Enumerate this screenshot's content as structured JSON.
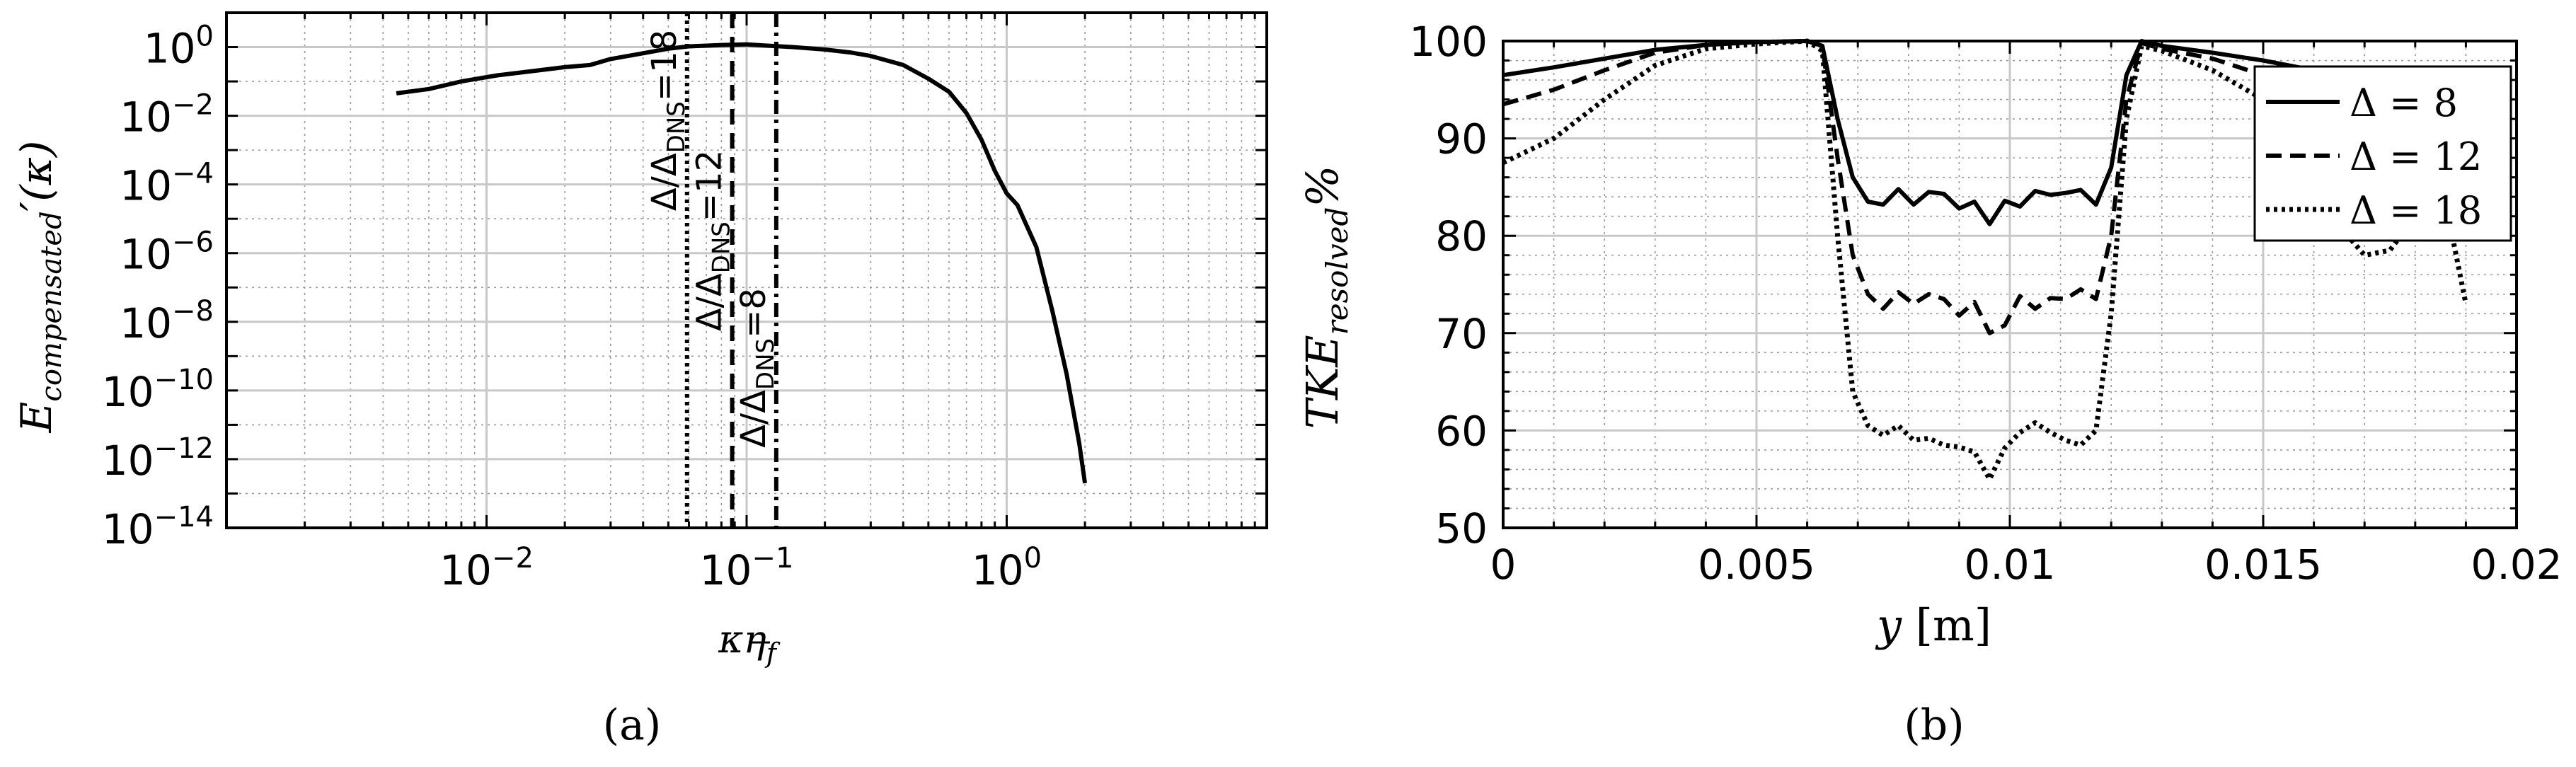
{
  "chart_data": [
    {
      "panel_label": "(a)",
      "type": "line",
      "x_scale": "log",
      "y_scale": "log",
      "xlim": [
        0.001,
        10
      ],
      "ylim": [
        1e-14,
        10
      ],
      "xlabel_base": "κη",
      "xlabel_sub": "f",
      "ylabel_base": "E",
      "ylabel_sub": "compensated",
      "ylabel_tail": "′(κ)",
      "xticks": [
        {
          "value": 0.01,
          "base": "10",
          "exp": "−2"
        },
        {
          "value": 0.1,
          "base": "10",
          "exp": "−1"
        },
        {
          "value": 1,
          "base": "10",
          "exp": "0"
        }
      ],
      "yticks": [
        {
          "value": 1,
          "base": "10",
          "exp": "0"
        },
        {
          "value": 0.01,
          "base": "10",
          "exp": "−2"
        },
        {
          "value": 0.0001,
          "base": "10",
          "exp": "−4"
        },
        {
          "value": 1e-06,
          "base": "10",
          "exp": "−6"
        },
        {
          "value": 1e-08,
          "base": "10",
          "exp": "−8"
        },
        {
          "value": 1e-10,
          "base": "10",
          "exp": "−10"
        },
        {
          "value": 1e-12,
          "base": "10",
          "exp": "−12"
        },
        {
          "value": 1e-14,
          "base": "10",
          "exp": "−14"
        }
      ],
      "grid": true,
      "series": [
        {
          "style": "solid",
          "x": [
            0.0045,
            0.006,
            0.008,
            0.011,
            0.015,
            0.02,
            0.025,
            0.03,
            0.035,
            0.05,
            0.06,
            0.08,
            0.1,
            0.12,
            0.15,
            0.2,
            0.25,
            0.3,
            0.4,
            0.5,
            0.6,
            0.7,
            0.8,
            0.9,
            1.0,
            1.1,
            1.3,
            1.5,
            1.7,
            1.9,
            2.0
          ],
          "y": [
            0.045,
            0.06,
            0.1,
            0.15,
            0.2,
            0.26,
            0.3,
            0.45,
            0.55,
            0.9,
            1.05,
            1.15,
            1.2,
            1.1,
            1.0,
            0.85,
            0.7,
            0.55,
            0.3,
            0.12,
            0.05,
            0.012,
            0.002,
            0.00025,
            5.5e-05,
            2.5e-05,
            1.5e-06,
            2e-08,
            3e-10,
            3e-12,
            2e-13
          ]
        }
      ],
      "vlines": [
        {
          "x": 0.059,
          "style": "dotted",
          "label_base": "Δ/Δ",
          "label_sub": "DNS",
          "label_tail": "=18"
        },
        {
          "x": 0.088,
          "style": "dashed",
          "label_base": "Δ/Δ",
          "label_sub": "DNS",
          "label_tail": "=12"
        },
        {
          "x": 0.13,
          "style": "dashdot",
          "label_base": "Δ/Δ",
          "label_sub": "DNS",
          "label_tail": "=8"
        }
      ]
    },
    {
      "panel_label": "(b)",
      "type": "line",
      "xlim": [
        0,
        0.02
      ],
      "ylim": [
        50,
        100
      ],
      "xlabel_italic": "y",
      "xlabel_unit": "[m]",
      "ylabel_base": "TKE",
      "ylabel_sub": "resolved",
      "ylabel_tail": "%",
      "xticks": [
        {
          "value": 0,
          "label": "0"
        },
        {
          "value": 0.005,
          "label": "0.005"
        },
        {
          "value": 0.01,
          "label": "0.01"
        },
        {
          "value": 0.015,
          "label": "0.015"
        },
        {
          "value": 0.02,
          "label": "0.02"
        }
      ],
      "yticks": [
        {
          "value": 50,
          "label": "50"
        },
        {
          "value": 60,
          "label": "60"
        },
        {
          "value": 70,
          "label": "70"
        },
        {
          "value": 80,
          "label": "80"
        },
        {
          "value": 90,
          "label": "90"
        },
        {
          "value": 100,
          "label": "100"
        }
      ],
      "grid": true,
      "legend_position": "top-right",
      "series": [
        {
          "name": "Δ = 8",
          "style": "solid",
          "x": [
            0,
            0.001,
            0.002,
            0.003,
            0.004,
            0.005,
            0.006,
            0.0063,
            0.0066,
            0.0069,
            0.0072,
            0.0075,
            0.0078,
            0.0081,
            0.0084,
            0.0087,
            0.009,
            0.0093,
            0.0096,
            0.0099,
            0.0102,
            0.0105,
            0.0108,
            0.0111,
            0.0114,
            0.0117,
            0.012,
            0.0123,
            0.0126,
            0.013,
            0.014,
            0.015,
            0.016,
            0.017,
            0.018,
            0.019
          ],
          "y": [
            96.5,
            97.3,
            98.2,
            99.1,
            99.6,
            99.9,
            100,
            99.5,
            92,
            86,
            83.5,
            83.2,
            84.8,
            83.2,
            84.5,
            84.3,
            82.8,
            83.5,
            81.2,
            83.6,
            83,
            84.6,
            84.2,
            84.4,
            84.7,
            83.2,
            87,
            96.5,
            100,
            99.5,
            98.8,
            98,
            97,
            96.5,
            96,
            95
          ]
        },
        {
          "name": "Δ = 12",
          "style": "dashed",
          "x": [
            0,
            0.001,
            0.002,
            0.003,
            0.004,
            0.005,
            0.006,
            0.0063,
            0.0066,
            0.0069,
            0.0072,
            0.0075,
            0.0078,
            0.0081,
            0.0084,
            0.0087,
            0.009,
            0.0093,
            0.0096,
            0.0099,
            0.0102,
            0.0105,
            0.0108,
            0.0111,
            0.0114,
            0.0117,
            0.012,
            0.0123,
            0.0126,
            0.013,
            0.014,
            0.015,
            0.016,
            0.017,
            0.018
          ],
          "y": [
            93.5,
            95,
            97,
            98.8,
            99.6,
            99.9,
            100,
            99.5,
            88,
            78,
            74,
            72.5,
            74.2,
            73,
            74,
            73.5,
            71.8,
            73.2,
            70,
            70.8,
            73.8,
            72.5,
            73.6,
            73.5,
            74.5,
            73.5,
            80,
            94,
            99.8,
            99.2,
            98.2,
            96.5,
            94.5,
            93,
            92
          ]
        },
        {
          "name": "Δ = 18",
          "style": "dotted",
          "x": [
            0,
            0.001,
            0.002,
            0.003,
            0.004,
            0.005,
            0.006,
            0.0063,
            0.0066,
            0.0069,
            0.0072,
            0.0075,
            0.0078,
            0.0081,
            0.0084,
            0.0087,
            0.009,
            0.0093,
            0.0096,
            0.0099,
            0.0102,
            0.0105,
            0.0108,
            0.0111,
            0.0114,
            0.0117,
            0.012,
            0.0123,
            0.0126,
            0.013,
            0.014,
            0.015,
            0.016,
            0.0165,
            0.017,
            0.0175,
            0.018,
            0.0185,
            0.019
          ],
          "y": [
            87.5,
            90,
            94,
            97.5,
            99.2,
            99.7,
            100,
            99,
            80,
            64,
            60.5,
            59.5,
            60.5,
            59,
            59.2,
            58.5,
            58.3,
            57.8,
            55,
            58.2,
            59.8,
            60.8,
            59.8,
            59,
            58.5,
            60,
            72,
            92,
            99.5,
            99,
            97,
            94,
            87,
            81,
            78,
            78.5,
            82,
            86,
            73
          ]
        }
      ]
    }
  ]
}
